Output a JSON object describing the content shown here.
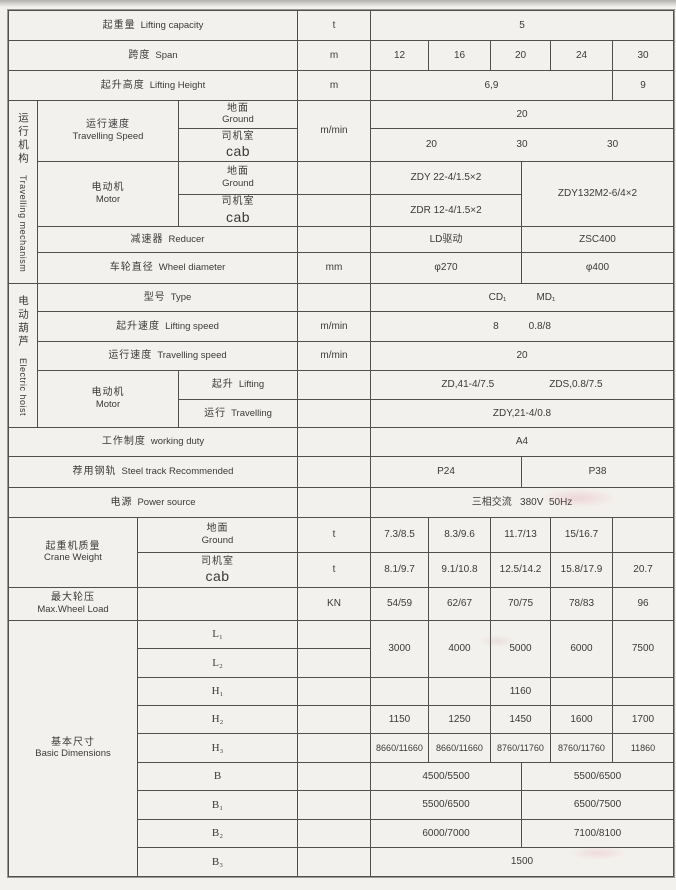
{
  "table": {
    "capacity": {
      "zh": "起重量",
      "en": "Lifting capacity",
      "unit": "t",
      "value": "5"
    },
    "span": {
      "zh": "跨度",
      "en": "Span",
      "unit": "m",
      "v": [
        "12",
        "16",
        "20",
        "24",
        "30"
      ]
    },
    "height": {
      "zh": "起升高度",
      "en": "Lifting Height",
      "unit": "m",
      "main": "6,9",
      "last": "9"
    },
    "travelling": {
      "zh": "运行机构",
      "en": "Travelling mechanism",
      "speed": {
        "zh": "运行速度",
        "en": "Travelling Speed",
        "unit": "m/min",
        "ground_zh": "地面",
        "ground_en": "Ground",
        "ground_v": "20",
        "cab_zh": "司机室",
        "cab_en": "cab",
        "cab_v1": "20",
        "cab_v2": "30",
        "cab_v3": "30"
      },
      "motor": {
        "zh": "电动机",
        "en": "Motor",
        "ground_zh": "地面",
        "ground_en": "Ground",
        "ground_v": "ZDY 22-4/1.5×2",
        "cab_zh": "司机室",
        "cab_en": "cab",
        "cab_v": "ZDR 12-4/1.5×2",
        "right_v": "ZDY132M2-6/4×2"
      },
      "reducer": {
        "zh": "减速器",
        "en": "Reducer",
        "left": "LD驱动",
        "right": "ZSC400"
      },
      "wheel": {
        "zh": "车轮直径",
        "en": "Wheel diameter",
        "unit": "mm",
        "left": "φ270",
        "right": "φ400"
      }
    },
    "hoist": {
      "zh": "电动葫芦",
      "en": "Electric hoist",
      "type": {
        "zh": "型号",
        "en": "Type",
        "v1": "CD₁",
        "v2": "MD₁"
      },
      "lift_speed": {
        "zh": "起升速度",
        "en": "Lifting speed",
        "unit": "m/min",
        "v1": "8",
        "v2": "0.8/8"
      },
      "trav_speed": {
        "zh": "运行速度",
        "en": "Travelling speed",
        "unit": "m/min",
        "v": "20"
      },
      "motor": {
        "zh": "电动机",
        "en": "Motor",
        "lift_zh": "起升",
        "lift_en": "Lifting",
        "lift_v1": "ZD,41-4/7.5",
        "lift_v2": "ZDS,0.8/7.5",
        "trav_zh": "运行",
        "trav_en": "Travelling",
        "trav_v": "ZDY,21-4/0.8"
      }
    },
    "duty": {
      "zh": "工作制度",
      "en": "working duty",
      "v": "A4"
    },
    "track": {
      "zh": "荐用钢轨",
      "en": "Steel track Recommended",
      "left": "P24",
      "right": "P38"
    },
    "power": {
      "zh": "电源",
      "en": "Power source",
      "v": "三相交流   380V  50Hz"
    },
    "weight": {
      "zh": "起重机质量",
      "en": "Crane Weight",
      "ground_zh": "地面",
      "ground_en": "Ground",
      "ground_unit": "t",
      "ground_v": [
        "7.3/8.5",
        "8.3/9.6",
        "11.7/13",
        "15/16.7",
        ""
      ],
      "cab_zh": "司机室",
      "cab_en": "cab",
      "cab_unit": "t",
      "cab_v": [
        "8.1/9.7",
        "9.1/10.8",
        "12.5/14.2",
        "15.8/17.9",
        "20.7"
      ]
    },
    "wheel_load": {
      "zh": "最大轮压",
      "en": "Max.Wheel Load",
      "unit": "KN",
      "v": [
        "54/59",
        "62/67",
        "70/75",
        "78/83",
        "96"
      ]
    },
    "dims": {
      "zh": "基本尺寸",
      "en": "Basic Dimensions",
      "l1": "L₁",
      "l2": "L₂",
      "l12_v": [
        "3000",
        "4000",
        "5000",
        "6000",
        "7500"
      ],
      "h1": "H₁",
      "h1_v": "1160",
      "h2": "H₂",
      "h2_v": [
        "1150",
        "1250",
        "1450",
        "1600",
        "1700"
      ],
      "h3": "H₃",
      "h3_v": [
        "8660/11660",
        "8660/11660",
        "8760/11760",
        "8760/11760",
        "11860"
      ],
      "b": "B",
      "b_left": "4500/5500",
      "b_right": "5500/6500",
      "b1": "B₁",
      "b1_left": "5500/6500",
      "b1_right": "6500/7500",
      "b2": "B₂",
      "b2_left": "6000/7000",
      "b2_right": "7100/8100",
      "b3": "B₃",
      "b3_v": "1500"
    }
  }
}
